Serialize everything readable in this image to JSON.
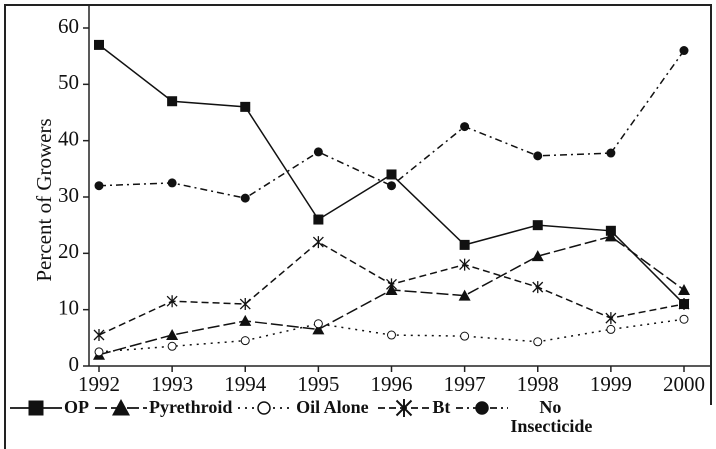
{
  "chart_data": {
    "type": "line",
    "ylabel": "Percent of Growers",
    "categories": [
      "1992",
      "1993",
      "1994",
      "1995",
      "1996",
      "1997",
      "1998",
      "1999",
      "2000"
    ],
    "ylim": [
      0,
      60
    ],
    "yticks": [
      0,
      10,
      20,
      30,
      40,
      50,
      60
    ],
    "series": [
      {
        "name": "OP",
        "color": "#111111",
        "dash": "solid",
        "marker": "square",
        "values": [
          57,
          47,
          46,
          26,
          34,
          21.5,
          25,
          24,
          11
        ]
      },
      {
        "name": "Pyrethroid",
        "color": "#111111",
        "dash": "long-dash",
        "marker": "triangle",
        "values": [
          2,
          5.5,
          8,
          6.5,
          13.5,
          12.5,
          19.5,
          23,
          13.5
        ]
      },
      {
        "name": "Oil Alone",
        "color": "#111111",
        "dash": "dotted",
        "marker": "open-circle",
        "values": [
          2.5,
          3.5,
          4.5,
          7.5,
          5.5,
          5.3,
          4.3,
          6.5,
          8.3
        ]
      },
      {
        "name": "Bt",
        "color": "#111111",
        "dash": "dashed",
        "marker": "star",
        "values": [
          5.5,
          11.5,
          11,
          22,
          14.5,
          18,
          14,
          8.5,
          11
        ]
      },
      {
        "name": "No Insecticide",
        "color": "#111111",
        "dash": "dash-dot",
        "marker": "circle",
        "values": [
          32,
          32.5,
          29.8,
          38,
          32,
          42.5,
          37.3,
          37.8,
          56
        ]
      }
    ]
  }
}
